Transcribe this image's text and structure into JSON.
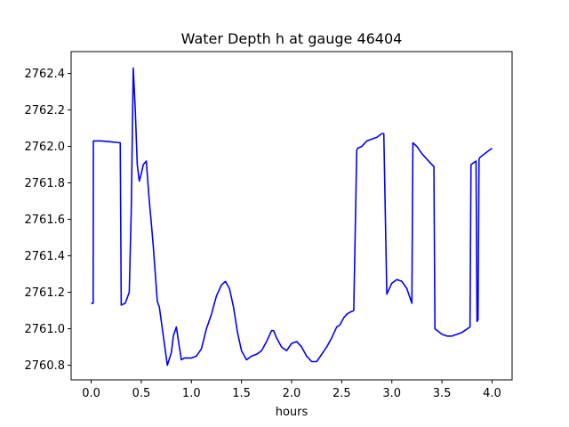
{
  "chart_data": {
    "type": "line",
    "title": "Water Depth h at gauge 46404",
    "xlabel": "hours",
    "ylabel": "",
    "xlim": [
      -0.2,
      4.2
    ],
    "ylim": [
      2760.72,
      2762.52
    ],
    "grid": false,
    "x_ticks": [
      0.0,
      0.5,
      1.0,
      1.5,
      2.0,
      2.5,
      3.0,
      3.5,
      4.0
    ],
    "x_tick_labels": [
      "0.0",
      "0.5",
      "1.0",
      "1.5",
      "2.0",
      "2.5",
      "3.0",
      "3.5",
      "4.0"
    ],
    "y_ticks": [
      2760.8,
      2761.0,
      2761.2,
      2761.4,
      2761.6,
      2761.8,
      2762.0,
      2762.2,
      2762.4
    ],
    "y_tick_labels": [
      "2760.8",
      "2761.0",
      "2761.2",
      "2761.4",
      "2761.6",
      "2761.8",
      "2762.0",
      "2762.2",
      "2762.4"
    ],
    "series": [
      {
        "color": "#0000ff",
        "x": [
          0.0,
          0.02,
          0.022,
          0.1,
          0.2,
          0.29,
          0.3,
          0.34,
          0.38,
          0.4,
          0.42,
          0.44,
          0.46,
          0.48,
          0.5,
          0.52,
          0.55,
          0.58,
          0.6,
          0.62,
          0.66,
          0.68,
          0.72,
          0.76,
          0.8,
          0.82,
          0.85,
          0.88,
          0.9,
          0.93,
          0.96,
          1.0,
          1.05,
          1.1,
          1.15,
          1.2,
          1.25,
          1.3,
          1.34,
          1.38,
          1.42,
          1.46,
          1.5,
          1.55,
          1.6,
          1.65,
          1.7,
          1.75,
          1.8,
          1.82,
          1.85,
          1.9,
          1.95,
          2.0,
          2.05,
          2.1,
          2.15,
          2.2,
          2.25,
          2.3,
          2.35,
          2.4,
          2.45,
          2.48,
          2.52,
          2.55,
          2.58,
          2.62,
          2.65,
          2.66,
          2.7,
          2.75,
          2.8,
          2.85,
          2.9,
          2.92,
          2.95,
          3.0,
          3.05,
          3.1,
          3.15,
          3.2,
          3.21,
          3.25,
          3.3,
          3.35,
          3.4,
          3.42,
          3.43,
          3.5,
          3.55,
          3.6,
          3.7,
          3.78,
          3.79,
          3.84,
          3.85,
          3.86,
          3.87,
          3.88,
          3.95,
          4.0
        ],
        "y": [
          2761.14,
          2761.14,
          2762.03,
          2762.03,
          2762.025,
          2762.02,
          2761.13,
          2761.14,
          2761.2,
          2761.65,
          2762.43,
          2762.2,
          2761.9,
          2761.81,
          2761.85,
          2761.9,
          2761.92,
          2761.7,
          2761.58,
          2761.45,
          2761.15,
          2761.12,
          2760.96,
          2760.8,
          2760.87,
          2760.96,
          2761.01,
          2760.9,
          2760.83,
          2760.84,
          2760.84,
          2760.84,
          2760.85,
          2760.89,
          2761.0,
          2761.08,
          2761.18,
          2761.24,
          2761.26,
          2761.22,
          2761.12,
          2760.98,
          2760.88,
          2760.83,
          2760.85,
          2760.86,
          2760.88,
          2760.93,
          2760.99,
          2760.99,
          2760.95,
          2760.9,
          2760.88,
          2760.92,
          2760.93,
          2760.9,
          2760.85,
          2760.82,
          2760.82,
          2760.86,
          2760.9,
          2760.95,
          2761.01,
          2761.02,
          2761.06,
          2761.08,
          2761.09,
          2761.1,
          2761.98,
          2761.99,
          2762.0,
          2762.03,
          2762.04,
          2762.05,
          2762.07,
          2762.07,
          2761.19,
          2761.25,
          2761.27,
          2761.26,
          2761.22,
          2761.14,
          2762.02,
          2762.0,
          2761.96,
          2761.93,
          2761.9,
          2761.89,
          2761.0,
          2760.97,
          2760.96,
          2760.96,
          2760.98,
          2761.01,
          2761.9,
          2761.92,
          2761.04,
          2761.05,
          2761.93,
          2761.94,
          2761.97,
          2761.99
        ]
      }
    ]
  }
}
